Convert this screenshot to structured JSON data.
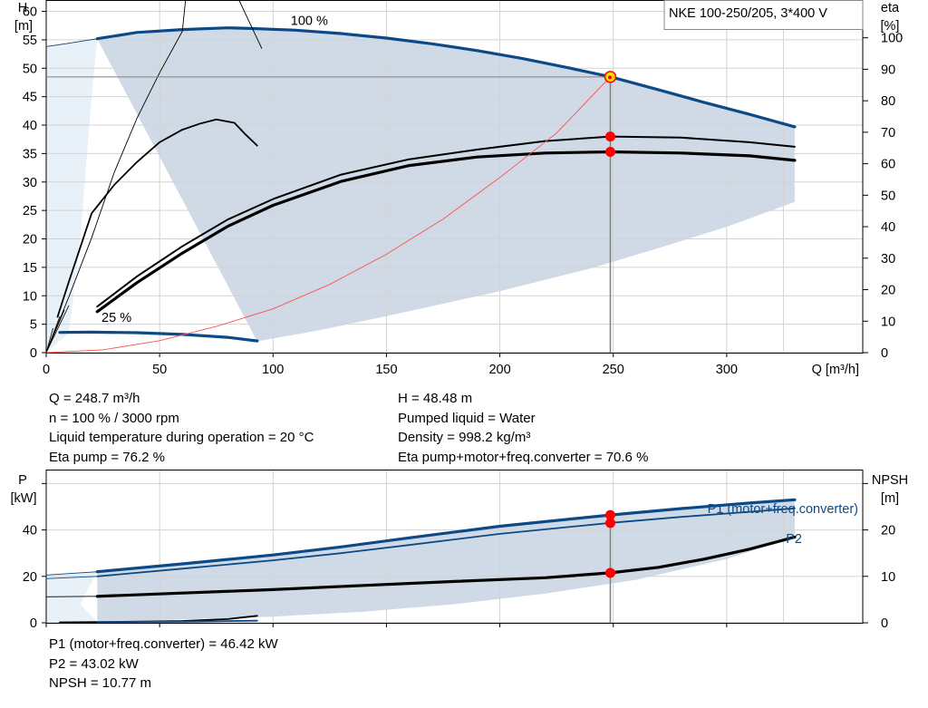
{
  "colors": {
    "operating_area": "#cfdae6",
    "operating_area_light": "#e8f0f8",
    "grid": "#d3d3d3",
    "blue_curve": "#0c4a87",
    "duty_point": "#ff0000",
    "duty_point_fill": "#ffe000",
    "system_curve": "#ff5050"
  },
  "chart_data": [
    {
      "type": "line",
      "title": "NKE 100-250/205, 3*400 V",
      "xlabel": "Q [m³/h]",
      "ylabel": [
        "H",
        "[m]"
      ],
      "y2label": [
        "eta",
        "[%]"
      ],
      "xlim": [
        0,
        350
      ],
      "ylim": [
        0,
        62
      ],
      "y2lim": [
        0,
        112
      ],
      "xticks": [
        0,
        50,
        100,
        150,
        200,
        250,
        300
      ],
      "xtick_labels": [
        "0",
        "50",
        "100",
        "150",
        "200",
        "250",
        "300"
      ],
      "yticks": [
        0,
        5,
        10,
        15,
        20,
        25,
        30,
        35,
        40,
        45,
        50,
        55,
        60
      ],
      "ytick_labels": [
        "0",
        "5",
        "10",
        "15",
        "20",
        "25",
        "30",
        "35",
        "40",
        "45",
        "50",
        "55",
        "60"
      ],
      "y2ticks": [
        0,
        10,
        20,
        30,
        40,
        50,
        60,
        70,
        80,
        90,
        100
      ],
      "y2tick_labels": [
        "0",
        "10",
        "20",
        "30",
        "40",
        "50",
        "60",
        "70",
        "80",
        "90",
        "100"
      ],
      "grid": true,
      "operating_area": {
        "upper": [
          [
            22.5,
            55.2
          ],
          [
            60,
            56.8
          ],
          [
            90,
            57.0
          ],
          [
            120,
            56.4
          ],
          [
            150,
            55.3
          ],
          [
            180,
            53.7
          ],
          [
            210,
            51.7
          ],
          [
            240,
            49.3
          ],
          [
            270,
            46.2
          ],
          [
            300,
            43.0
          ],
          [
            330,
            39.7
          ]
        ],
        "lower": [
          [
            330,
            26.5
          ],
          [
            300,
            22.1
          ],
          [
            270,
            18.4
          ],
          [
            240,
            14.8
          ],
          [
            200,
            10.8
          ],
          [
            150,
            6.4
          ],
          [
            120,
            3.9
          ],
          [
            93,
            2.0
          ]
        ],
        "light_upper": [
          [
            0,
            53.8
          ],
          [
            22.5,
            55.2
          ]
        ],
        "light_lower": [
          [
            0,
            0
          ],
          [
            10,
            3.5
          ],
          [
            15,
            20
          ],
          [
            20,
            45
          ],
          [
            22.5,
            55.2
          ]
        ]
      },
      "series": [
        {
          "label": "100 %",
          "role": "head-max",
          "color": "#0c4a87",
          "width": 3.2,
          "points": [
            [
              22.5,
              55.2
            ],
            [
              40,
              56.3
            ],
            [
              60,
              56.8
            ],
            [
              80,
              57.1
            ],
            [
              90,
              57.0
            ],
            [
              110,
              56.7
            ],
            [
              130,
              56.1
            ],
            [
              150,
              55.3
            ],
            [
              170,
              54.3
            ],
            [
              190,
              53.1
            ],
            [
              210,
              51.7
            ],
            [
              230,
              50.1
            ],
            [
              248.7,
              48.5
            ],
            [
              270,
              46.2
            ],
            [
              290,
              44.0
            ],
            [
              310,
              41.9
            ],
            [
              330,
              39.7
            ]
          ]
        },
        {
          "label": "25 %",
          "role": "head-min",
          "color": "#0c4a87",
          "width": 3.2,
          "points": [
            [
              6,
              3.55
            ],
            [
              20,
              3.6
            ],
            [
              40,
              3.5
            ],
            [
              60,
              3.2
            ],
            [
              80,
              2.7
            ],
            [
              93,
              2.05
            ]
          ]
        },
        {
          "role": "head-low-flow",
          "color": "#1a3d70",
          "width": 0.9,
          "points": [
            [
              0,
              53.8
            ],
            [
              10,
              54.4
            ],
            [
              22.5,
              55.2
            ]
          ]
        },
        {
          "role": "eta-pump-thin",
          "color": "#000000",
          "width": 0.9,
          "points": [
            [
              0,
              0
            ],
            [
              10,
              9.8
            ],
            [
              20,
              20.2
            ],
            [
              30,
              31.7
            ],
            [
              40,
              41.2
            ],
            [
              50,
              49.2
            ],
            [
              60,
              56.5
            ],
            [
              63,
              68.2
            ],
            [
              70,
              66.8
            ],
            [
              85,
              62.0
            ],
            [
              95,
              53.5
            ]
          ]
        },
        {
          "role": "eta-pump-low",
          "color": "#000000",
          "width": 1.8,
          "points": [
            [
              5,
              6.3
            ],
            [
              10,
              12.5
            ],
            [
              20,
              24.5
            ],
            [
              30,
              29.5
            ],
            [
              40,
              33.5
            ],
            [
              50,
              37.0
            ],
            [
              60,
              39.2
            ],
            [
              68,
              40.3
            ],
            [
              75,
              41.0
            ],
            [
              83,
              40.4
            ],
            [
              88,
              38.3
            ],
            [
              93,
              36.4
            ]
          ]
        },
        {
          "role": "eta-pump",
          "color": "#000000",
          "width": 2.0,
          "points": [
            [
              22.5,
              8.1
            ],
            [
              40,
              13.4
            ],
            [
              60,
              18.7
            ],
            [
              80,
              23.4
            ],
            [
              100,
              27.0
            ],
            [
              130,
              31.3
            ],
            [
              160,
              34.0
            ],
            [
              190,
              35.7
            ],
            [
              220,
              37.2
            ],
            [
              248.7,
              38.0
            ],
            [
              280,
              37.8
            ],
            [
              310,
              37.0
            ],
            [
              330,
              36.2
            ]
          ]
        },
        {
          "role": "eta-total",
          "color": "#000000",
          "width": 3.2,
          "points": [
            [
              22.5,
              7.2
            ],
            [
              40,
              12.3
            ],
            [
              60,
              17.5
            ],
            [
              80,
              22.2
            ],
            [
              100,
              25.9
            ],
            [
              130,
              30.1
            ],
            [
              160,
              32.9
            ],
            [
              190,
              34.4
            ],
            [
              220,
              35.1
            ],
            [
              248.7,
              35.3
            ],
            [
              280,
              35.1
            ],
            [
              310,
              34.6
            ],
            [
              330,
              33.8
            ]
          ]
        },
        {
          "role": "eta-fan-lines",
          "color": "#000000",
          "width": 0.8,
          "fan": [
            [
              0,
              0
            ],
            [
              [
                3,
                4.3
              ],
              [
                6,
                6.4
              ],
              [
                8,
                7.5
              ],
              [
                10,
                8.3
              ]
            ]
          ]
        },
        {
          "role": "system-curve",
          "color": "#ff5050",
          "width": 0.9,
          "points": [
            [
              0,
              0
            ],
            [
              25,
              0.5
            ],
            [
              50,
              2.1
            ],
            [
              75,
              4.6
            ],
            [
              100,
              7.7
            ],
            [
              125,
              12.0
            ],
            [
              150,
              17.3
            ],
            [
              175,
              23.5
            ],
            [
              200,
              30.8
            ],
            [
              225,
              38.6
            ],
            [
              248.7,
              48.5
            ]
          ]
        }
      ],
      "annotations": [
        {
          "text": "100 %",
          "at": [
            116,
            57.6
          ]
        },
        {
          "text": "25 %",
          "at": [
            31,
            5.4
          ]
        }
      ],
      "duty_point": {
        "q": 248.7,
        "h": 48.48,
        "eta_pump_h": 38.0,
        "eta_total_h": 35.3
      }
    },
    {
      "type": "line",
      "ylabel": [
        "P",
        "[kW]"
      ],
      "y2label": [
        "NPSH",
        "[m]"
      ],
      "xlim": [
        0,
        350
      ],
      "ylim": [
        0,
        66
      ],
      "y2lim": [
        0,
        33
      ],
      "xticks": [
        0,
        50,
        100,
        150,
        200,
        250,
        300
      ],
      "yticks": [
        0,
        20,
        40,
        60
      ],
      "ytick_labels": [
        "0",
        "20",
        "40",
        ""
      ],
      "y2ticks": [
        0,
        10,
        20,
        30
      ],
      "y2tick_labels": [
        "0",
        "10",
        "20",
        ""
      ],
      "grid": true,
      "operating_area": {
        "upper": [
          [
            22.5,
            22.0
          ],
          [
            100,
            29.2
          ],
          [
            160,
            36.6
          ],
          [
            200,
            41.6
          ],
          [
            248.7,
            46.4
          ],
          [
            300,
            50.8
          ],
          [
            330,
            53.0
          ]
        ],
        "lower": [
          [
            330,
            37.0
          ],
          [
            300,
            27.5
          ],
          [
            260,
            18.5
          ],
          [
            220,
            12.6
          ],
          [
            180,
            8.0
          ],
          [
            140,
            4.8
          ],
          [
            100,
            2.6
          ],
          [
            93,
            2.4
          ],
          [
            22.5,
            0.4
          ]
        ],
        "light_upper": [
          [
            0,
            20.6
          ],
          [
            22.5,
            22.0
          ]
        ],
        "light_lower": [
          [
            0,
            0.2
          ],
          [
            22.5,
            0.4
          ],
          [
            15,
            8
          ],
          [
            22.5,
            22.0
          ]
        ]
      },
      "series": [
        {
          "label": "P1 (motor+freq.converter)",
          "color": "#0c4a87",
          "width": 3.2,
          "points": [
            [
              22.5,
              22.0
            ],
            [
              60,
              25.4
            ],
            [
              100,
              29.2
            ],
            [
              130,
              32.7
            ],
            [
              160,
              36.6
            ],
            [
              200,
              41.6
            ],
            [
              248.7,
              46.42
            ],
            [
              280,
              49.2
            ],
            [
              310,
              51.6
            ],
            [
              330,
              53.0
            ]
          ]
        },
        {
          "label": "P2",
          "color": "#0c4a87",
          "width": 1.8,
          "points": [
            [
              22.5,
              20.0
            ],
            [
              60,
              23.3
            ],
            [
              100,
              26.9
            ],
            [
              130,
              30.0
            ],
            [
              160,
              33.5
            ],
            [
              200,
              38.3
            ],
            [
              248.7,
              43.02
            ],
            [
              280,
              45.6
            ],
            [
              310,
              47.8
            ],
            [
              330,
              49.3
            ]
          ]
        },
        {
          "role": "npsh",
          "color": "#000000",
          "width": 3.2,
          "points": [
            [
              22.5,
              11.4
            ],
            [
              60,
              12.8
            ],
            [
              100,
              14.3
            ],
            [
              140,
              16.1
            ],
            [
              180,
              17.8
            ],
            [
              220,
              19.4
            ],
            [
              248.7,
              21.5
            ],
            [
              270,
              23.9
            ],
            [
              290,
              27.4
            ],
            [
              310,
              31.7
            ],
            [
              330,
              36.9
            ]
          ]
        },
        {
          "role": "npsh-low-flow",
          "color": "#0c4a87",
          "width": 0.9,
          "points": [
            [
              0,
              20.6
            ],
            [
              22.5,
              22.0
            ]
          ]
        },
        {
          "role": "p2-low-flow",
          "color": "#0c4a87",
          "width": 0.9,
          "points": [
            [
              0,
              19.0
            ],
            [
              22.5,
              20.0
            ]
          ]
        },
        {
          "role": "npsh-thin",
          "color": "#000000",
          "width": 0.9,
          "points": [
            [
              0,
              11.2
            ],
            [
              22.5,
              11.4
            ]
          ]
        },
        {
          "role": "p-min-speed",
          "color": "#000000",
          "width": 1.8,
          "points": [
            [
              6,
              0.2
            ],
            [
              30,
              0.4
            ],
            [
              60,
              0.8
            ],
            [
              80,
              1.6
            ],
            [
              93,
              3.0
            ]
          ]
        },
        {
          "role": "p2-min-speed",
          "color": "#0c4a87",
          "width": 1.8,
          "points": [
            [
              22.5,
              0.3
            ],
            [
              60,
              0.5
            ],
            [
              93,
              0.9
            ]
          ]
        }
      ],
      "duty_point": {
        "q": 248.7,
        "p1": 46.42,
        "p2": 43.02,
        "npsh": 21.5
      }
    }
  ],
  "info_main": {
    "left": [
      "Q = 248.7 m³/h",
      "n = 100 % / 3000 rpm",
      "Liquid temperature during operation = 20 °C",
      "Eta pump = 76.2 %"
    ],
    "right": [
      "H = 48.48 m",
      "Pumped liquid = Water",
      "Density = 998.2 kg/m³",
      "Eta pump+motor+freq.converter = 70.6 %"
    ]
  },
  "info_power": [
    "P1 (motor+freq.converter) = 46.42 kW",
    "P2 = 43.02 kW",
    "NPSH = 10.77 m"
  ]
}
